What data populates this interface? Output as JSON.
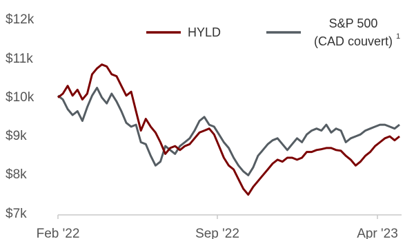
{
  "chart_data": {
    "type": "line",
    "title": "",
    "xlabel": "",
    "ylabel": "",
    "x_ticks": [
      "Feb '22",
      "Sep '22",
      "Apr '23"
    ],
    "y_ticks": [
      "$7k",
      "$8k",
      "$9k",
      "$10k",
      "$11k",
      "$12k"
    ],
    "y_tick_values": [
      7000,
      8000,
      9000,
      10000,
      11000,
      12000
    ],
    "ylim": [
      7000,
      12000
    ],
    "x_range": [
      "2022-02",
      "2023-04"
    ],
    "grid": false,
    "legend_position": "top",
    "colors": {
      "HYLD": "#7b0000",
      "SP500": "#555d63"
    },
    "legend": [
      {
        "key": "HYLD",
        "lines": [
          "HYLD"
        ],
        "superscript": ""
      },
      {
        "key": "SP500",
        "lines": [
          "S&P 500",
          "(CAD couvert)"
        ],
        "superscript": "1"
      }
    ],
    "series": [
      {
        "name": "HYLD",
        "key": "HYLD",
        "months": [
          0,
          0.2,
          0.4,
          0.6,
          0.8,
          1.0,
          1.2,
          1.4,
          1.6,
          1.8,
          2.0,
          2.2,
          2.4,
          2.6,
          2.8,
          3.0,
          3.2,
          3.4,
          3.6,
          3.8,
          4.0,
          4.2,
          4.4,
          4.6,
          4.8,
          5.0,
          5.2,
          5.4,
          5.6,
          5.8,
          6.0,
          6.2,
          6.4,
          6.6,
          6.8,
          7.0,
          7.2,
          7.4,
          7.6,
          7.8,
          8.0,
          8.2,
          8.4,
          8.6,
          8.8,
          9.0,
          9.2,
          9.4,
          9.6,
          9.8,
          10.0,
          10.2,
          10.4,
          10.6,
          10.8,
          11.0,
          11.2,
          11.4,
          11.6,
          11.8,
          12.0,
          12.2,
          12.4,
          12.6,
          12.8,
          13.0,
          13.2,
          13.4,
          13.6,
          13.8,
          14.0
        ],
        "values": [
          9950,
          10050,
          10250,
          10000,
          10150,
          9900,
          10050,
          10550,
          10700,
          10800,
          10750,
          10550,
          10500,
          10250,
          10000,
          10100,
          9600,
          9100,
          9400,
          9200,
          9050,
          8800,
          8500,
          8650,
          8700,
          8600,
          8700,
          8750,
          8900,
          9050,
          9100,
          9150,
          9000,
          8700,
          8400,
          8200,
          8100,
          7850,
          7600,
          7450,
          7650,
          7800,
          7950,
          8100,
          8250,
          8350,
          8300,
          8400,
          8400,
          8350,
          8400,
          8550,
          8550,
          8600,
          8620,
          8650,
          8650,
          8600,
          8580,
          8450,
          8350,
          8200,
          8300,
          8450,
          8550,
          8700,
          8800,
          8900,
          8950,
          8850,
          8950
        ]
      },
      {
        "name": "S&P 500 (CAD couvert)",
        "key": "SP500",
        "months": [
          0,
          0.2,
          0.4,
          0.6,
          0.8,
          1.0,
          1.2,
          1.4,
          1.6,
          1.8,
          2.0,
          2.2,
          2.4,
          2.6,
          2.8,
          3.0,
          3.2,
          3.4,
          3.6,
          3.8,
          4.0,
          4.2,
          4.4,
          4.6,
          4.8,
          5.0,
          5.2,
          5.4,
          5.6,
          5.8,
          6.0,
          6.2,
          6.4,
          6.6,
          6.8,
          7.0,
          7.2,
          7.4,
          7.6,
          7.8,
          8.0,
          8.2,
          8.4,
          8.6,
          8.8,
          9.0,
          9.2,
          9.4,
          9.6,
          9.8,
          10.0,
          10.2,
          10.4,
          10.6,
          10.8,
          11.0,
          11.2,
          11.4,
          11.6,
          11.8,
          12.0,
          12.2,
          12.4,
          12.6,
          12.8,
          13.0,
          13.2,
          13.4,
          13.6,
          13.8,
          14.0
        ],
        "values": [
          10000,
          9900,
          9650,
          9500,
          9600,
          9350,
          9700,
          10000,
          10200,
          9950,
          9800,
          10050,
          9850,
          9600,
          9300,
          9200,
          9250,
          8800,
          8750,
          8450,
          8200,
          8300,
          8700,
          8600,
          8500,
          8700,
          8800,
          8900,
          9100,
          9350,
          9450,
          9250,
          9200,
          9000,
          8800,
          8650,
          8400,
          8200,
          8050,
          7950,
          8150,
          8450,
          8600,
          8750,
          8850,
          8900,
          8750,
          8600,
          8750,
          8900,
          8800,
          9000,
          9100,
          9150,
          9100,
          9250,
          9050,
          9150,
          9100,
          8800,
          8900,
          8950,
          9000,
          9100,
          9150,
          9200,
          9250,
          9250,
          9200,
          9150,
          9250
        ]
      }
    ]
  }
}
